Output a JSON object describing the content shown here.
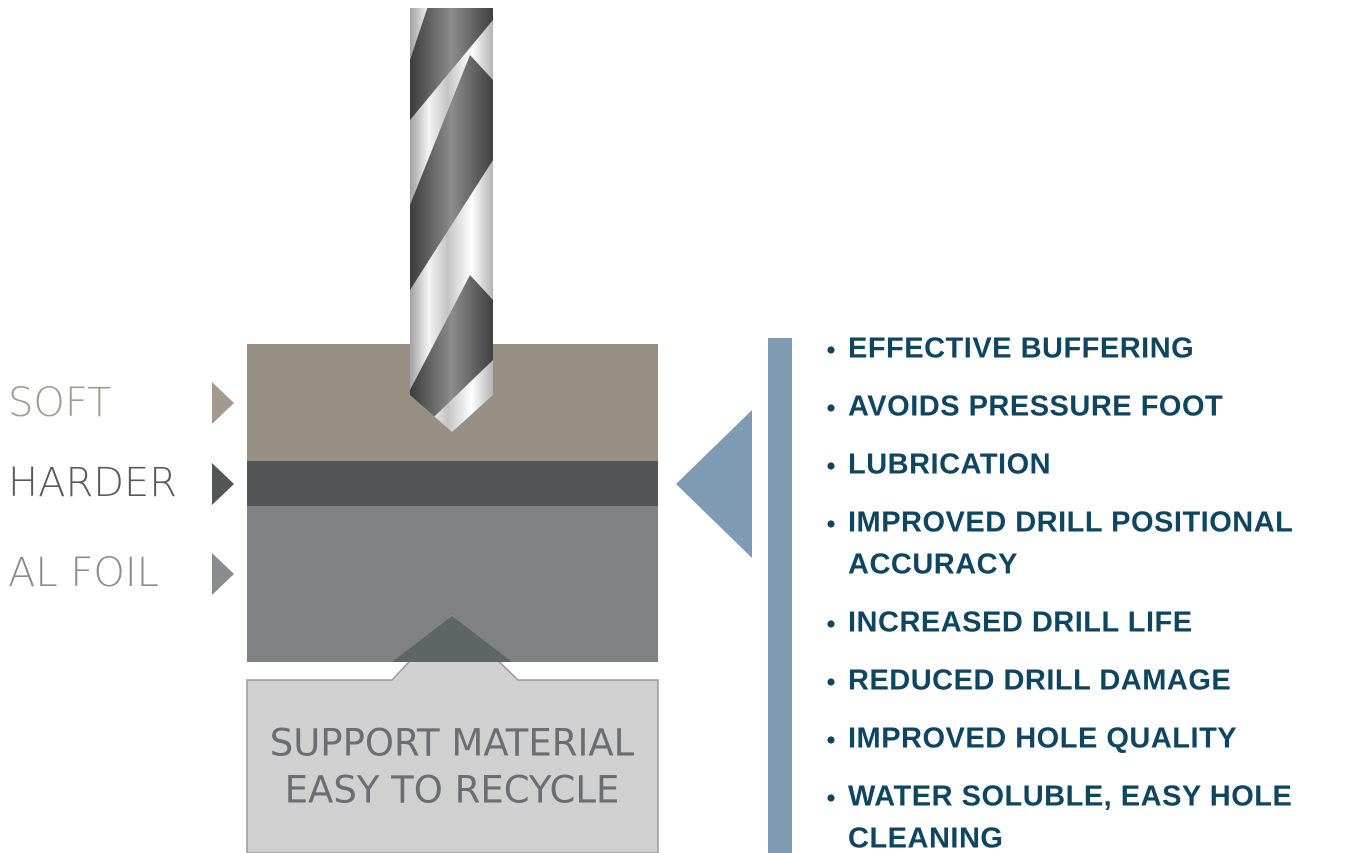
{
  "layers": [
    {
      "label": "SOFT"
    },
    {
      "label": "HARDER"
    },
    {
      "label": "AL FOIL"
    }
  ],
  "support": {
    "lines": [
      "SUPPORT MATERIAL",
      "EASY TO RECYCLE"
    ]
  },
  "benefits": [
    {
      "lines": [
        "EFFECTIVE BUFFERING"
      ]
    },
    {
      "lines": [
        "AVOIDS PRESSURE FOOT"
      ]
    },
    {
      "lines": [
        "LUBRICATION"
      ]
    },
    {
      "lines": [
        "IMPROVED DRILL POSITIONAL",
        "ACCURACY"
      ]
    },
    {
      "lines": [
        "INCREASED DRILL LIFE"
      ]
    },
    {
      "lines": [
        "REDUCED DRILL DAMAGE"
      ]
    },
    {
      "lines": [
        "IMPROVED HOLE QUALITY"
      ]
    },
    {
      "lines": [
        "WATER SOLUBLE, EASY HOLE",
        "CLEANING"
      ]
    }
  ]
}
